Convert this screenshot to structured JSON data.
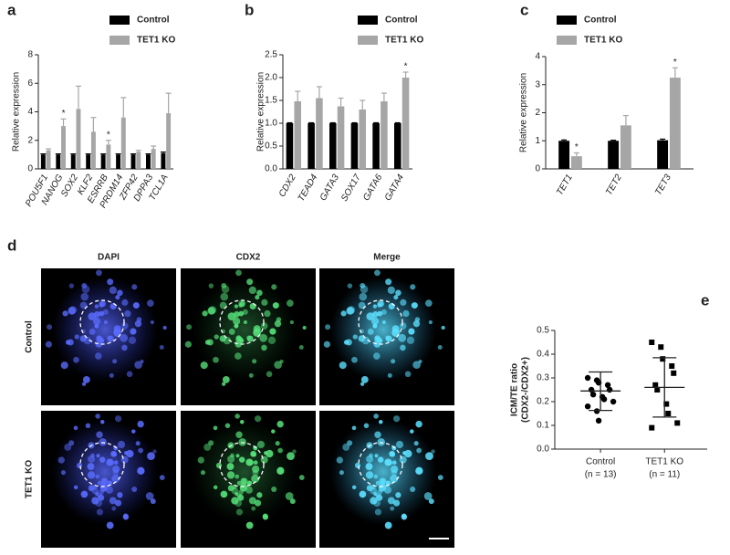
{
  "chart_data": [
    {
      "type": "bar",
      "panel_label": "a",
      "ylabel": "Relative expression",
      "categories": [
        "POU5F1",
        "NANOG",
        "SOX2",
        "KLF2",
        "ESRRB",
        "PRDM14",
        "ZFP42",
        "DPPA3",
        "TCL1A"
      ],
      "series": [
        {
          "name": "Control",
          "color": "#000000",
          "values": [
            1,
            1,
            1,
            1,
            1,
            1,
            1,
            1,
            1.1
          ],
          "errors": [
            0.05,
            0.05,
            0.05,
            0.05,
            0.05,
            0.05,
            0.05,
            0.05,
            0.08
          ]
        },
        {
          "name": "TET1 KO",
          "color": "#a6a6a6",
          "values": [
            1.3,
            3.0,
            4.2,
            2.6,
            1.7,
            3.6,
            1.2,
            1.4,
            3.9
          ],
          "errors": [
            0.1,
            0.5,
            1.6,
            1.0,
            0.3,
            1.4,
            0.1,
            0.2,
            1.4
          ],
          "significance": [
            null,
            "*",
            null,
            null,
            "*",
            null,
            null,
            null,
            null
          ]
        }
      ],
      "ylim": [
        0,
        8
      ],
      "yticks": [
        0,
        2,
        4,
        6,
        8
      ]
    },
    {
      "type": "bar",
      "panel_label": "b",
      "ylabel": "Relative expression",
      "categories": [
        "CDX2",
        "TEAD4",
        "GATA3",
        "SOX17",
        "GATA6",
        "GATA4"
      ],
      "series": [
        {
          "name": "Control",
          "color": "#000000",
          "values": [
            1,
            1,
            1,
            1,
            1,
            1
          ],
          "errors": [
            0.01,
            0.01,
            0.01,
            0.01,
            0.01,
            0.01
          ]
        },
        {
          "name": "TET1 KO",
          "color": "#a6a6a6",
          "values": [
            1.48,
            1.55,
            1.37,
            1.3,
            1.48,
            2.0
          ],
          "errors": [
            0.22,
            0.25,
            0.18,
            0.2,
            0.18,
            0.12
          ],
          "significance": [
            null,
            null,
            null,
            null,
            null,
            "*"
          ]
        }
      ],
      "ylim": [
        0,
        2.5
      ],
      "yticks": [
        {
          "value": 0,
          "label": "0.0"
        },
        0.5,
        {
          "value": 1,
          "label": "1.0"
        },
        1.5,
        {
          "value": 2,
          "label": "2.0"
        },
        2.5
      ]
    },
    {
      "type": "bar",
      "panel_label": "c",
      "ylabel": "Relative expression",
      "categories": [
        "TET1",
        "TET2",
        "TET3"
      ],
      "series": [
        {
          "name": "Control",
          "color": "#000000",
          "values": [
            1,
            1,
            1.02
          ],
          "errors": [
            0.03,
            0.02,
            0.04
          ]
        },
        {
          "name": "TET1 KO",
          "color": "#a6a6a6",
          "values": [
            0.45,
            1.55,
            3.25
          ],
          "errors": [
            0.12,
            0.35,
            0.35
          ],
          "significance": [
            "*",
            null,
            "*"
          ]
        }
      ],
      "ylim": [
        0,
        4
      ],
      "yticks": [
        0,
        1,
        2,
        3,
        4
      ]
    },
    {
      "type": "dotplot",
      "panel_label": "e",
      "ylabel": [
        "ICM/TE ratio",
        "(CDX2-/CDX2+)"
      ],
      "groups": [
        {
          "name": "Control",
          "n_label": "(n = 13)",
          "color": "#000000",
          "values": [
            0.3,
            0.29,
            0.28,
            0.27,
            0.25,
            0.25,
            0.23,
            0.22,
            0.21,
            0.2,
            0.18,
            0.16,
            0.12
          ],
          "mean": 0.245,
          "sd_lower": 0.163,
          "sd_upper": 0.325
        },
        {
          "name": "TET1 KO",
          "n_label": "(n = 11)",
          "color": "#000000",
          "values": [
            0.45,
            0.43,
            0.38,
            0.35,
            0.32,
            0.27,
            0.25,
            0.19,
            0.15,
            0.11,
            0.09
          ],
          "mean": 0.26,
          "sd_lower": 0.135,
          "sd_upper": 0.385
        }
      ],
      "ylim": [
        0,
        0.5
      ],
      "yticks": [
        {
          "value": 0,
          "label": "0.0"
        },
        0.1,
        0.2,
        0.3,
        0.4,
        0.5
      ]
    }
  ],
  "figure_d": {
    "panel_label": "d",
    "columns": [
      "DAPI",
      "CDX2",
      "Merge"
    ],
    "rows": [
      "Control",
      "TET1 KO"
    ]
  }
}
